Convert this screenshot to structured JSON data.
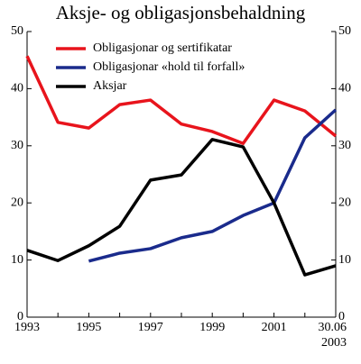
{
  "chart_data": {
    "type": "line",
    "title": "Aksje- og obligasjonsbehaldning",
    "categories": [
      "1993",
      null,
      "1995",
      null,
      "1997",
      null,
      "1999",
      null,
      "2001",
      null,
      "30.06\n2003"
    ],
    "series": [
      {
        "name": "Obligasjonar og sertifikatar",
        "color": "#e8141c",
        "values": [
          45.7,
          34.1,
          33.1,
          37.2,
          38.0,
          33.8,
          32.5,
          30.4,
          38.0,
          36.1,
          31.7
        ]
      },
      {
        "name": "Obligasjonar «hold til forfall»",
        "color": "#1a2b8c",
        "values": [
          null,
          null,
          9.8,
          11.2,
          12.0,
          13.9,
          15.0,
          17.8,
          20.0,
          31.4,
          36.3
        ]
      },
      {
        "name": "Aksjar",
        "color": "#000000",
        "values": [
          11.7,
          9.9,
          12.5,
          15.9,
          24.0,
          24.9,
          31.1,
          29.8,
          20.0,
          7.4,
          9.0
        ]
      }
    ],
    "ylim": [
      0,
      50
    ],
    "yticks": [
      0,
      10,
      20,
      30,
      40,
      50
    ],
    "y2lim": [
      0,
      50
    ],
    "y2ticks": [
      0,
      10,
      20,
      30,
      40,
      50
    ],
    "grid": false,
    "legend": "upper left"
  }
}
